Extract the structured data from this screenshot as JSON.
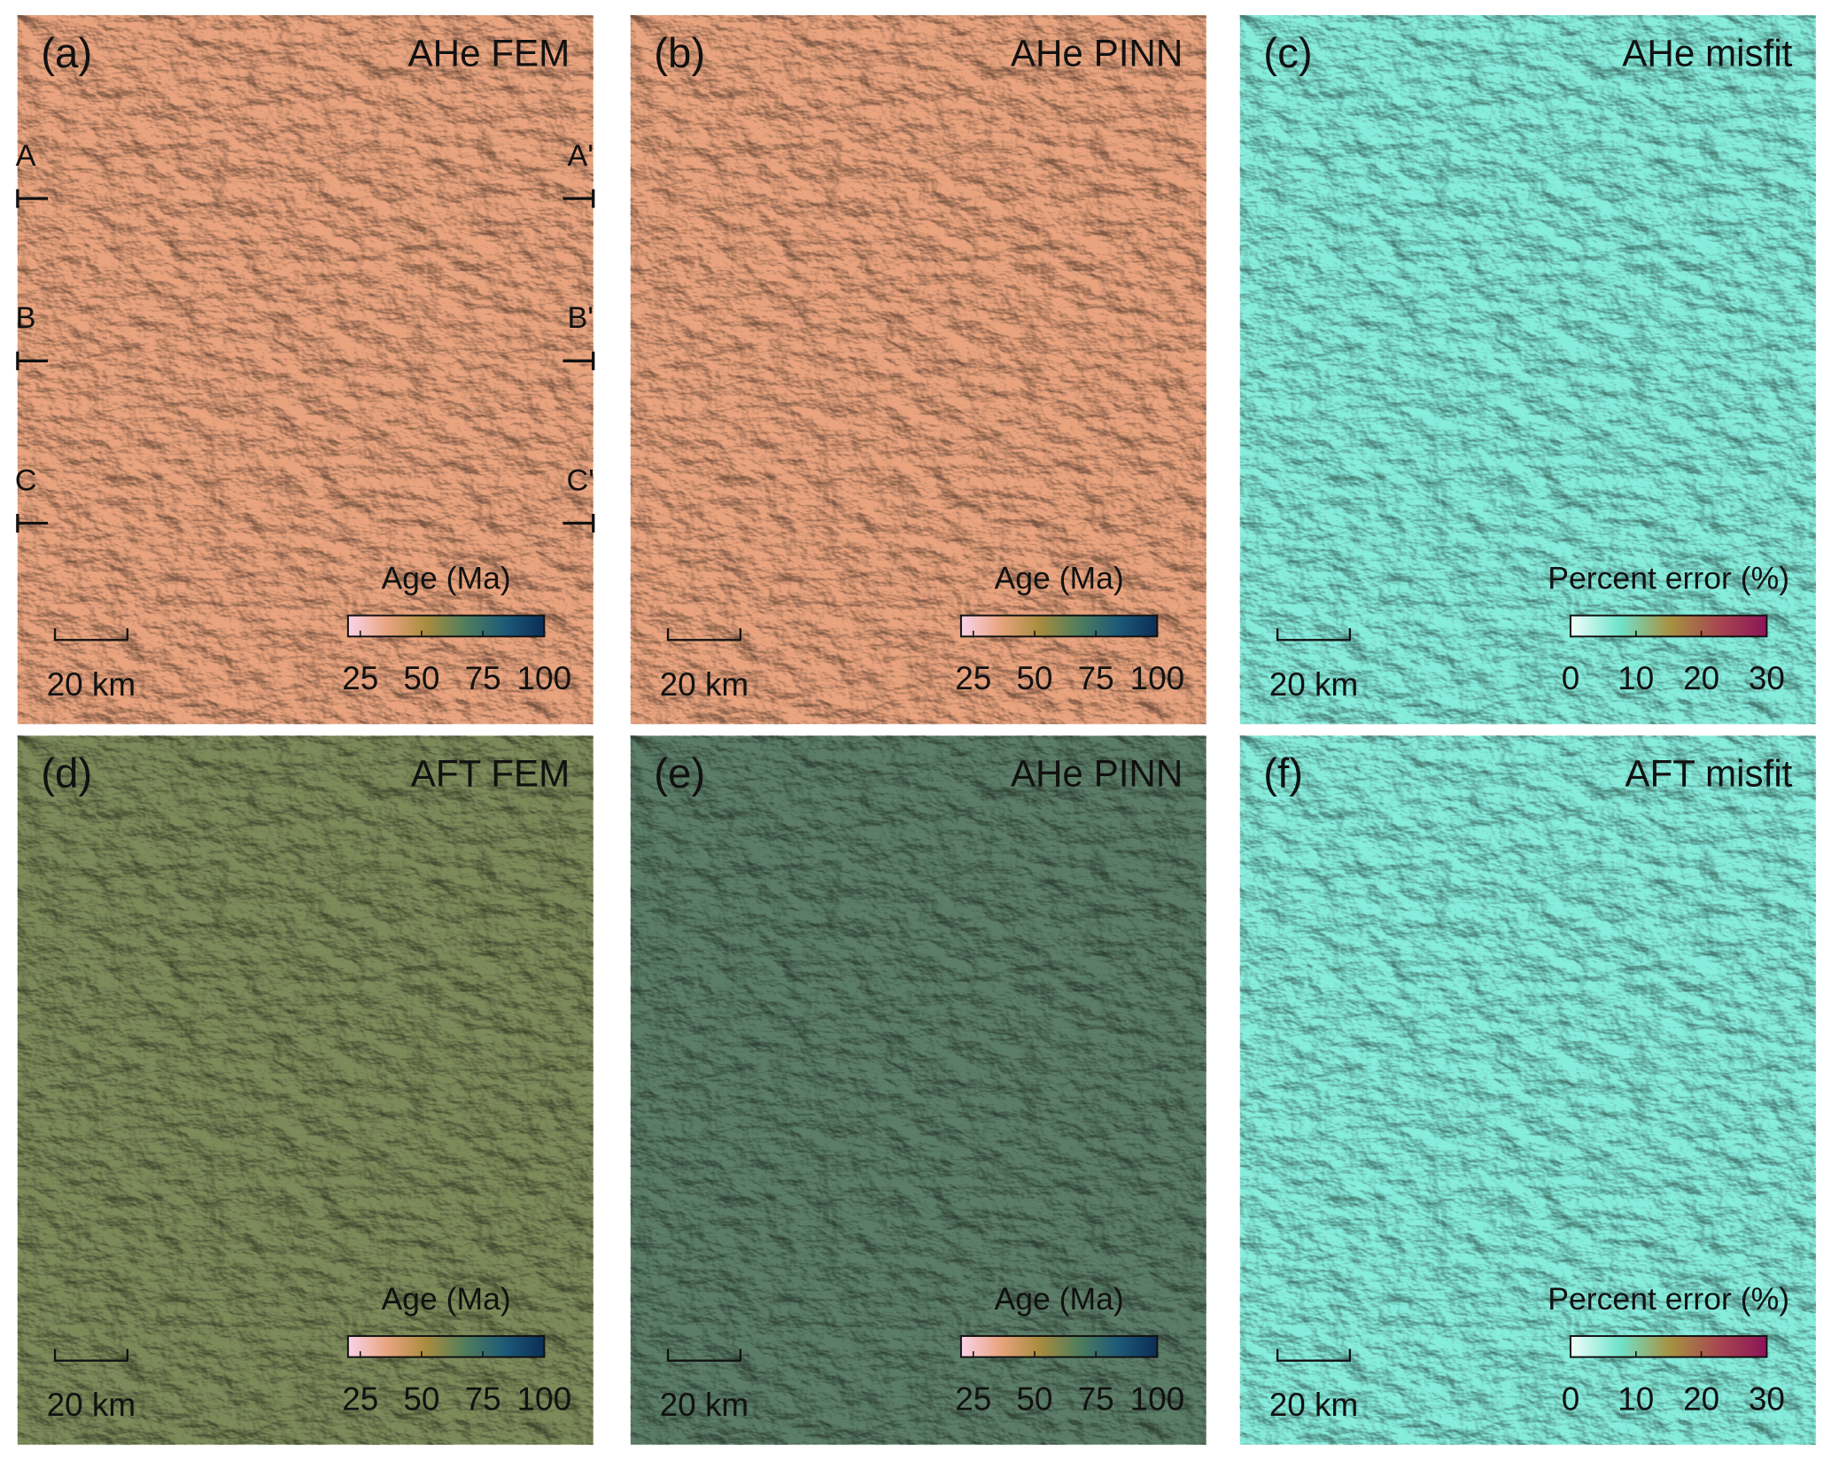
{
  "panels": [
    {
      "label": "(a)",
      "title": "AHe FEM",
      "background": "#e9a47f",
      "scale_bar": "20 km",
      "colorbar": {
        "title": "Age (Ma)",
        "lim": [
          20,
          100
        ],
        "ticks": [
          25,
          50,
          75,
          100
        ],
        "colors": [
          "#fbd3ea",
          "#e9a47f",
          "#a88c3e",
          "#4f7d5c",
          "#1d5a78",
          "#0b2d55"
        ]
      },
      "sections": [
        {
          "left": "A",
          "right": "A'"
        },
        {
          "left": "B",
          "right": "B'"
        },
        {
          "left": "C",
          "right": "C'"
        }
      ]
    },
    {
      "label": "(b)",
      "title": "AHe PINN",
      "background": "#e9a47f",
      "scale_bar": "20 km",
      "colorbar": {
        "title": "Age (Ma)",
        "lim": [
          20,
          100
        ],
        "ticks": [
          25,
          50,
          75,
          100
        ],
        "colors": [
          "#fbd3ea",
          "#e9a47f",
          "#a88c3e",
          "#4f7d5c",
          "#1d5a78",
          "#0b2d55"
        ]
      }
    },
    {
      "label": "(c)",
      "title": "AHe misfit",
      "background": "#86ecdc",
      "scale_bar": "20 km",
      "colorbar": {
        "title": "Percent error (%)",
        "lim": [
          0,
          30
        ],
        "ticks": [
          0,
          10,
          20,
          30
        ],
        "colors": [
          "#f2fffb",
          "#6fe3cc",
          "#a59443",
          "#a8484f",
          "#8a1458"
        ]
      }
    },
    {
      "label": "(d)",
      "title": "AFT FEM",
      "background": "#7d8a5a",
      "scale_bar": "20 km",
      "colorbar": {
        "title": "Age (Ma)",
        "lim": [
          20,
          100
        ],
        "ticks": [
          25,
          50,
          75,
          100
        ],
        "colors": [
          "#fbd3ea",
          "#e9a47f",
          "#a88c3e",
          "#4f7d5c",
          "#1d5a78",
          "#0b2d55"
        ]
      }
    },
    {
      "label": "(e)",
      "title": "AHe PINN",
      "background": "#5c7e68",
      "scale_bar": "20 km",
      "colorbar": {
        "title": "Age (Ma)",
        "lim": [
          20,
          100
        ],
        "ticks": [
          25,
          50,
          75,
          100
        ],
        "colors": [
          "#fbd3ea",
          "#e9a47f",
          "#a88c3e",
          "#4f7d5c",
          "#1d5a78",
          "#0b2d55"
        ]
      }
    },
    {
      "label": "(f)",
      "title": "AFT misfit",
      "background": "#86ecdc",
      "scale_bar": "20 km",
      "colorbar": {
        "title": "Percent error (%)",
        "lim": [
          0,
          30
        ],
        "ticks": [
          0,
          10,
          20,
          30
        ],
        "colors": [
          "#f2fffb",
          "#6fe3cc",
          "#a59443",
          "#a8484f",
          "#8a1458"
        ]
      }
    }
  ]
}
